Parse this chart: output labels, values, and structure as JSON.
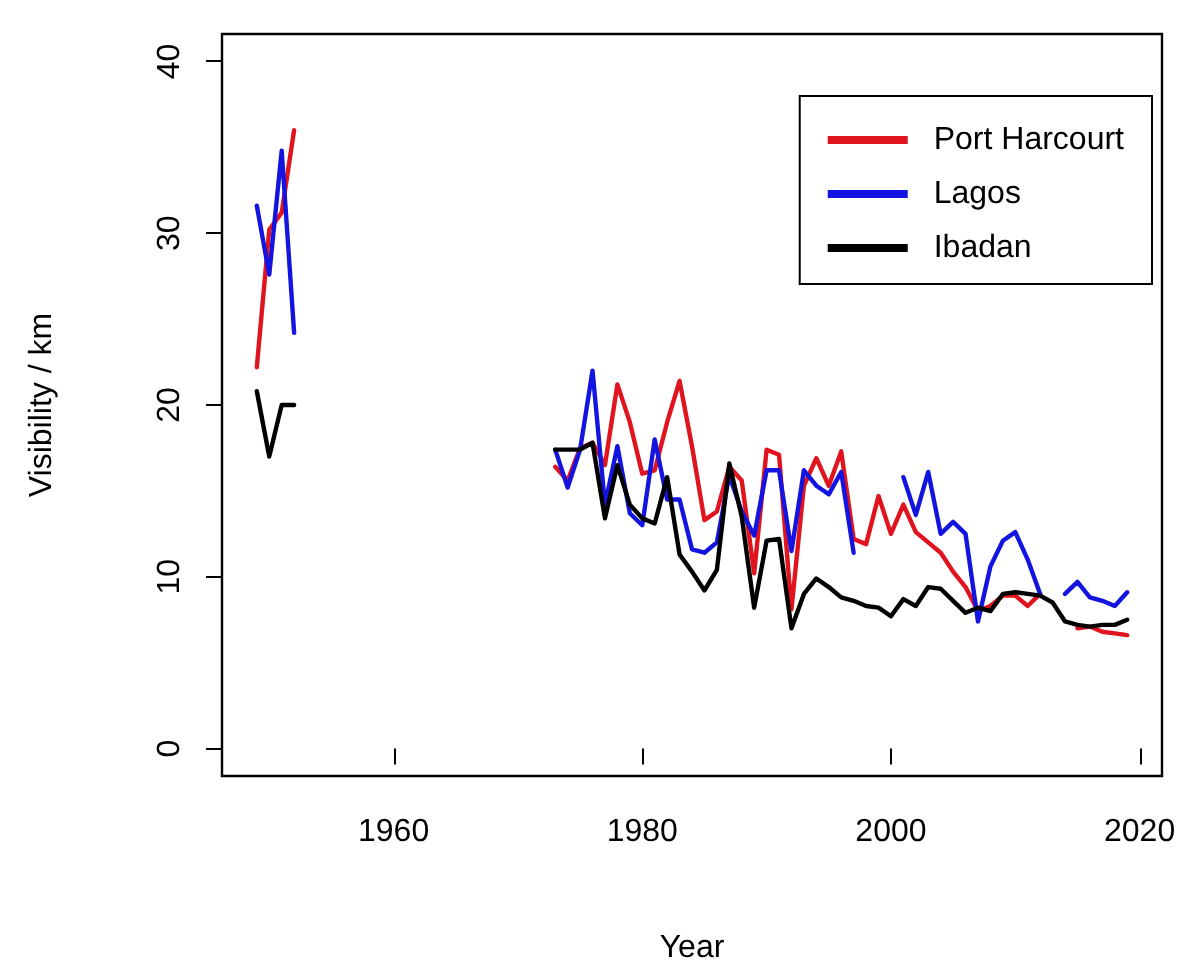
{
  "chart_data": {
    "type": "line",
    "xlabel": "Year",
    "ylabel": "Visibility / km",
    "x": [
      1949,
      1950,
      1951,
      1952,
      1953,
      1973,
      1974,
      1975,
      1976,
      1977,
      1978,
      1979,
      1980,
      1981,
      1982,
      1983,
      1984,
      1985,
      1986,
      1987,
      1988,
      1989,
      1990,
      1991,
      1992,
      1993,
      1994,
      1995,
      1996,
      1997,
      1998,
      1999,
      2000,
      2001,
      2002,
      2003,
      2004,
      2005,
      2006,
      2007,
      2008,
      2009,
      2010,
      2011,
      2012,
      2013,
      2014,
      2015,
      2016,
      2017,
      2018,
      2019
    ],
    "series": [
      {
        "name": "Port Harcourt",
        "color": "#e0141e",
        "values": [
          22.2,
          30.2,
          31.2,
          36.0,
          null,
          16.4,
          15.6,
          17.5,
          17.8,
          16.5,
          21.2,
          19.0,
          16.0,
          16.2,
          19.0,
          21.4,
          17.6,
          13.3,
          13.8,
          16.4,
          15.6,
          10.2,
          17.4,
          17.1,
          8.1,
          15.3,
          16.9,
          15.3,
          17.3,
          12.2,
          11.9,
          14.7,
          12.5,
          14.2,
          12.6,
          12.0,
          11.4,
          10.3,
          9.4,
          8.0,
          8.3,
          8.9,
          8.9,
          8.3,
          9.0,
          null,
          null,
          7.0,
          7.1,
          6.8,
          6.7,
          6.6
        ]
      },
      {
        "name": "Lagos",
        "color": "#1414e0",
        "values": [
          31.6,
          27.6,
          34.8,
          24.2,
          null,
          17.4,
          15.2,
          17.4,
          22.0,
          14.2,
          17.6,
          13.7,
          13.0,
          18.0,
          14.5,
          14.5,
          11.6,
          11.4,
          12.0,
          15.9,
          13.8,
          12.4,
          16.2,
          16.2,
          11.5,
          16.2,
          15.3,
          14.8,
          16.1,
          11.4,
          null,
          null,
          null,
          15.8,
          13.6,
          16.1,
          12.5,
          13.2,
          12.5,
          7.4,
          10.6,
          12.1,
          12.6,
          11.0,
          9.0,
          null,
          9.0,
          9.7,
          8.8,
          8.6,
          8.3,
          9.1
        ]
      },
      {
        "name": "Ibadan",
        "color": "#000000",
        "values": [
          20.8,
          17.0,
          20.0,
          20.0,
          null,
          17.4,
          17.4,
          17.4,
          17.8,
          13.4,
          16.5,
          14.2,
          13.4,
          13.1,
          15.8,
          11.3,
          10.3,
          9.2,
          10.4,
          16.6,
          13.5,
          8.2,
          12.1,
          12.2,
          7.0,
          9.0,
          9.9,
          9.4,
          8.8,
          8.6,
          8.3,
          8.2,
          7.7,
          8.7,
          8.3,
          9.4,
          9.3,
          8.6,
          7.9,
          8.2,
          8.0,
          9.0,
          9.1,
          9.0,
          8.9,
          8.5,
          7.4,
          7.2,
          7.1,
          7.2,
          7.2,
          7.5
        ]
      }
    ],
    "xlim": [
      1946.2,
      2021.8
    ],
    "xticks": [
      1960,
      1980,
      2000,
      2020
    ],
    "ylim": [
      -1.6,
      41.6
    ],
    "yticks": [
      0,
      10,
      20,
      30,
      40
    ],
    "legend": "top right",
    "grid": false,
    "marker": "none",
    "line_style": "solid"
  }
}
